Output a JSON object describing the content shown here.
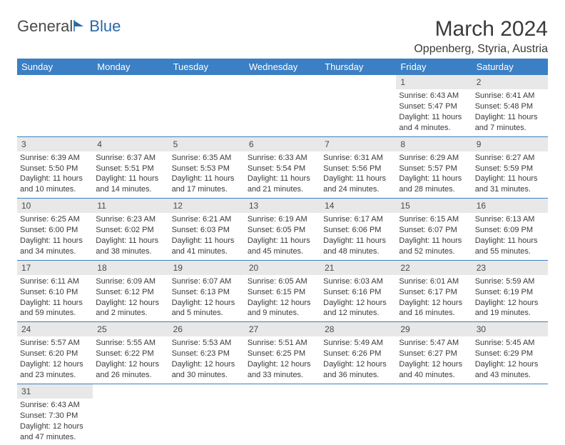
{
  "logo": {
    "text1": "General",
    "text2": "Blue"
  },
  "title": "March 2024",
  "location": "Oppenberg, Styria, Austria",
  "colors": {
    "header_bg": "#3b7fc4",
    "header_text": "#ffffff",
    "daynum_bg": "#e8e8e8",
    "text": "#3a3a3a",
    "logo_gray": "#4a4a4a",
    "logo_blue": "#2968a8"
  },
  "weekdays": [
    "Sunday",
    "Monday",
    "Tuesday",
    "Wednesday",
    "Thursday",
    "Friday",
    "Saturday"
  ],
  "weeks": [
    [
      null,
      null,
      null,
      null,
      null,
      {
        "n": "1",
        "sr": "Sunrise: 6:43 AM",
        "ss": "Sunset: 5:47 PM",
        "d1": "Daylight: 11 hours",
        "d2": "and 4 minutes."
      },
      {
        "n": "2",
        "sr": "Sunrise: 6:41 AM",
        "ss": "Sunset: 5:48 PM",
        "d1": "Daylight: 11 hours",
        "d2": "and 7 minutes."
      }
    ],
    [
      {
        "n": "3",
        "sr": "Sunrise: 6:39 AM",
        "ss": "Sunset: 5:50 PM",
        "d1": "Daylight: 11 hours",
        "d2": "and 10 minutes."
      },
      {
        "n": "4",
        "sr": "Sunrise: 6:37 AM",
        "ss": "Sunset: 5:51 PM",
        "d1": "Daylight: 11 hours",
        "d2": "and 14 minutes."
      },
      {
        "n": "5",
        "sr": "Sunrise: 6:35 AM",
        "ss": "Sunset: 5:53 PM",
        "d1": "Daylight: 11 hours",
        "d2": "and 17 minutes."
      },
      {
        "n": "6",
        "sr": "Sunrise: 6:33 AM",
        "ss": "Sunset: 5:54 PM",
        "d1": "Daylight: 11 hours",
        "d2": "and 21 minutes."
      },
      {
        "n": "7",
        "sr": "Sunrise: 6:31 AM",
        "ss": "Sunset: 5:56 PM",
        "d1": "Daylight: 11 hours",
        "d2": "and 24 minutes."
      },
      {
        "n": "8",
        "sr": "Sunrise: 6:29 AM",
        "ss": "Sunset: 5:57 PM",
        "d1": "Daylight: 11 hours",
        "d2": "and 28 minutes."
      },
      {
        "n": "9",
        "sr": "Sunrise: 6:27 AM",
        "ss": "Sunset: 5:59 PM",
        "d1": "Daylight: 11 hours",
        "d2": "and 31 minutes."
      }
    ],
    [
      {
        "n": "10",
        "sr": "Sunrise: 6:25 AM",
        "ss": "Sunset: 6:00 PM",
        "d1": "Daylight: 11 hours",
        "d2": "and 34 minutes."
      },
      {
        "n": "11",
        "sr": "Sunrise: 6:23 AM",
        "ss": "Sunset: 6:02 PM",
        "d1": "Daylight: 11 hours",
        "d2": "and 38 minutes."
      },
      {
        "n": "12",
        "sr": "Sunrise: 6:21 AM",
        "ss": "Sunset: 6:03 PM",
        "d1": "Daylight: 11 hours",
        "d2": "and 41 minutes."
      },
      {
        "n": "13",
        "sr": "Sunrise: 6:19 AM",
        "ss": "Sunset: 6:05 PM",
        "d1": "Daylight: 11 hours",
        "d2": "and 45 minutes."
      },
      {
        "n": "14",
        "sr": "Sunrise: 6:17 AM",
        "ss": "Sunset: 6:06 PM",
        "d1": "Daylight: 11 hours",
        "d2": "and 48 minutes."
      },
      {
        "n": "15",
        "sr": "Sunrise: 6:15 AM",
        "ss": "Sunset: 6:07 PM",
        "d1": "Daylight: 11 hours",
        "d2": "and 52 minutes."
      },
      {
        "n": "16",
        "sr": "Sunrise: 6:13 AM",
        "ss": "Sunset: 6:09 PM",
        "d1": "Daylight: 11 hours",
        "d2": "and 55 minutes."
      }
    ],
    [
      {
        "n": "17",
        "sr": "Sunrise: 6:11 AM",
        "ss": "Sunset: 6:10 PM",
        "d1": "Daylight: 11 hours",
        "d2": "and 59 minutes."
      },
      {
        "n": "18",
        "sr": "Sunrise: 6:09 AM",
        "ss": "Sunset: 6:12 PM",
        "d1": "Daylight: 12 hours",
        "d2": "and 2 minutes."
      },
      {
        "n": "19",
        "sr": "Sunrise: 6:07 AM",
        "ss": "Sunset: 6:13 PM",
        "d1": "Daylight: 12 hours",
        "d2": "and 5 minutes."
      },
      {
        "n": "20",
        "sr": "Sunrise: 6:05 AM",
        "ss": "Sunset: 6:15 PM",
        "d1": "Daylight: 12 hours",
        "d2": "and 9 minutes."
      },
      {
        "n": "21",
        "sr": "Sunrise: 6:03 AM",
        "ss": "Sunset: 6:16 PM",
        "d1": "Daylight: 12 hours",
        "d2": "and 12 minutes."
      },
      {
        "n": "22",
        "sr": "Sunrise: 6:01 AM",
        "ss": "Sunset: 6:17 PM",
        "d1": "Daylight: 12 hours",
        "d2": "and 16 minutes."
      },
      {
        "n": "23",
        "sr": "Sunrise: 5:59 AM",
        "ss": "Sunset: 6:19 PM",
        "d1": "Daylight: 12 hours",
        "d2": "and 19 minutes."
      }
    ],
    [
      {
        "n": "24",
        "sr": "Sunrise: 5:57 AM",
        "ss": "Sunset: 6:20 PM",
        "d1": "Daylight: 12 hours",
        "d2": "and 23 minutes."
      },
      {
        "n": "25",
        "sr": "Sunrise: 5:55 AM",
        "ss": "Sunset: 6:22 PM",
        "d1": "Daylight: 12 hours",
        "d2": "and 26 minutes."
      },
      {
        "n": "26",
        "sr": "Sunrise: 5:53 AM",
        "ss": "Sunset: 6:23 PM",
        "d1": "Daylight: 12 hours",
        "d2": "and 30 minutes."
      },
      {
        "n": "27",
        "sr": "Sunrise: 5:51 AM",
        "ss": "Sunset: 6:25 PM",
        "d1": "Daylight: 12 hours",
        "d2": "and 33 minutes."
      },
      {
        "n": "28",
        "sr": "Sunrise: 5:49 AM",
        "ss": "Sunset: 6:26 PM",
        "d1": "Daylight: 12 hours",
        "d2": "and 36 minutes."
      },
      {
        "n": "29",
        "sr": "Sunrise: 5:47 AM",
        "ss": "Sunset: 6:27 PM",
        "d1": "Daylight: 12 hours",
        "d2": "and 40 minutes."
      },
      {
        "n": "30",
        "sr": "Sunrise: 5:45 AM",
        "ss": "Sunset: 6:29 PM",
        "d1": "Daylight: 12 hours",
        "d2": "and 43 minutes."
      }
    ],
    [
      {
        "n": "31",
        "sr": "Sunrise: 6:43 AM",
        "ss": "Sunset: 7:30 PM",
        "d1": "Daylight: 12 hours",
        "d2": "and 47 minutes."
      },
      null,
      null,
      null,
      null,
      null,
      null
    ]
  ]
}
